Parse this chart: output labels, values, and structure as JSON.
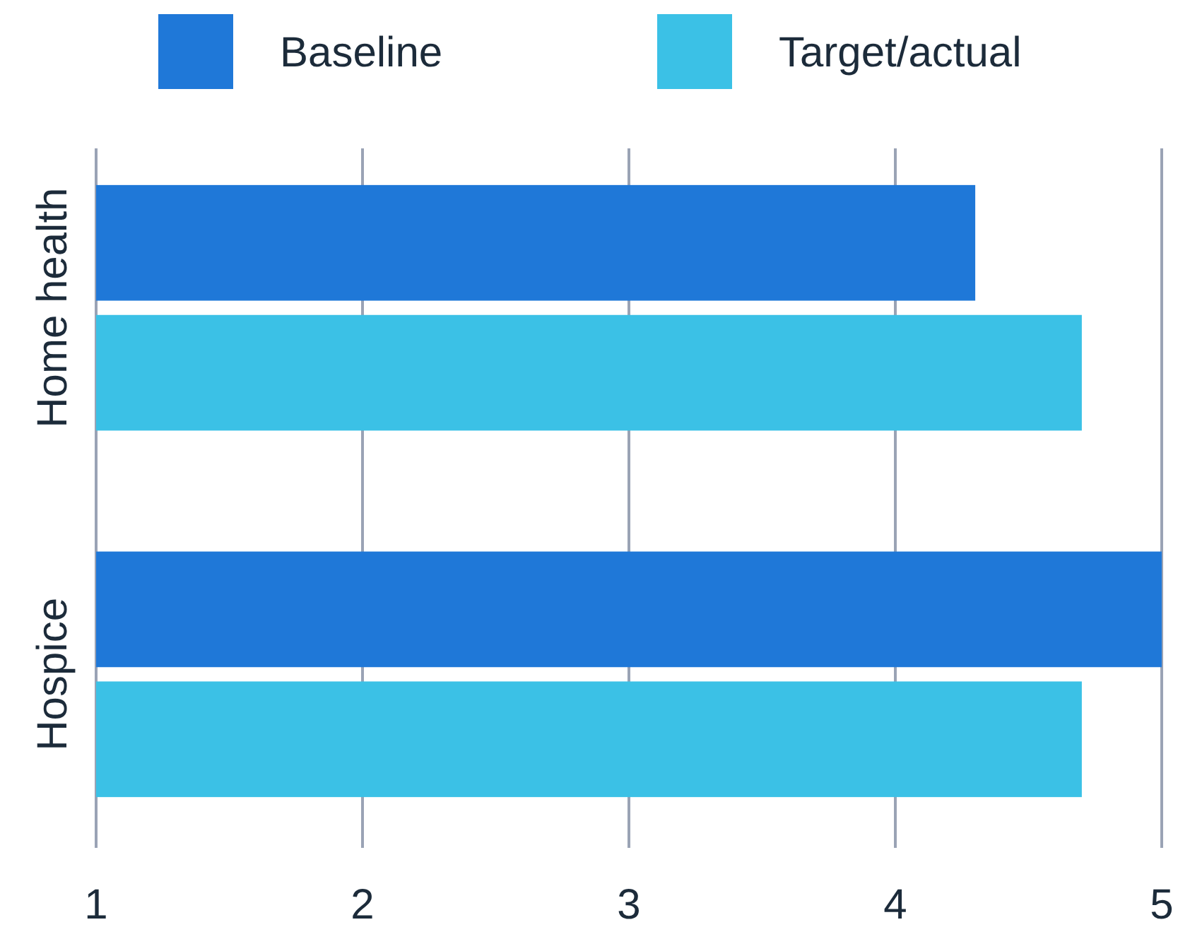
{
  "chart_data": {
    "type": "bar",
    "orientation": "horizontal",
    "categories": [
      "Home health",
      "Hospice"
    ],
    "series": [
      {
        "name": "Baseline",
        "color": "#1f78d8",
        "values": [
          4.3,
          5
        ]
      },
      {
        "name": "Target/actual",
        "color": "#3bc1e6",
        "values": [
          4.7,
          4.7
        ]
      }
    ],
    "xlim": [
      1,
      5
    ],
    "xticks": [
      1,
      2,
      3,
      4,
      5
    ],
    "grid": "x",
    "legend": "top"
  }
}
